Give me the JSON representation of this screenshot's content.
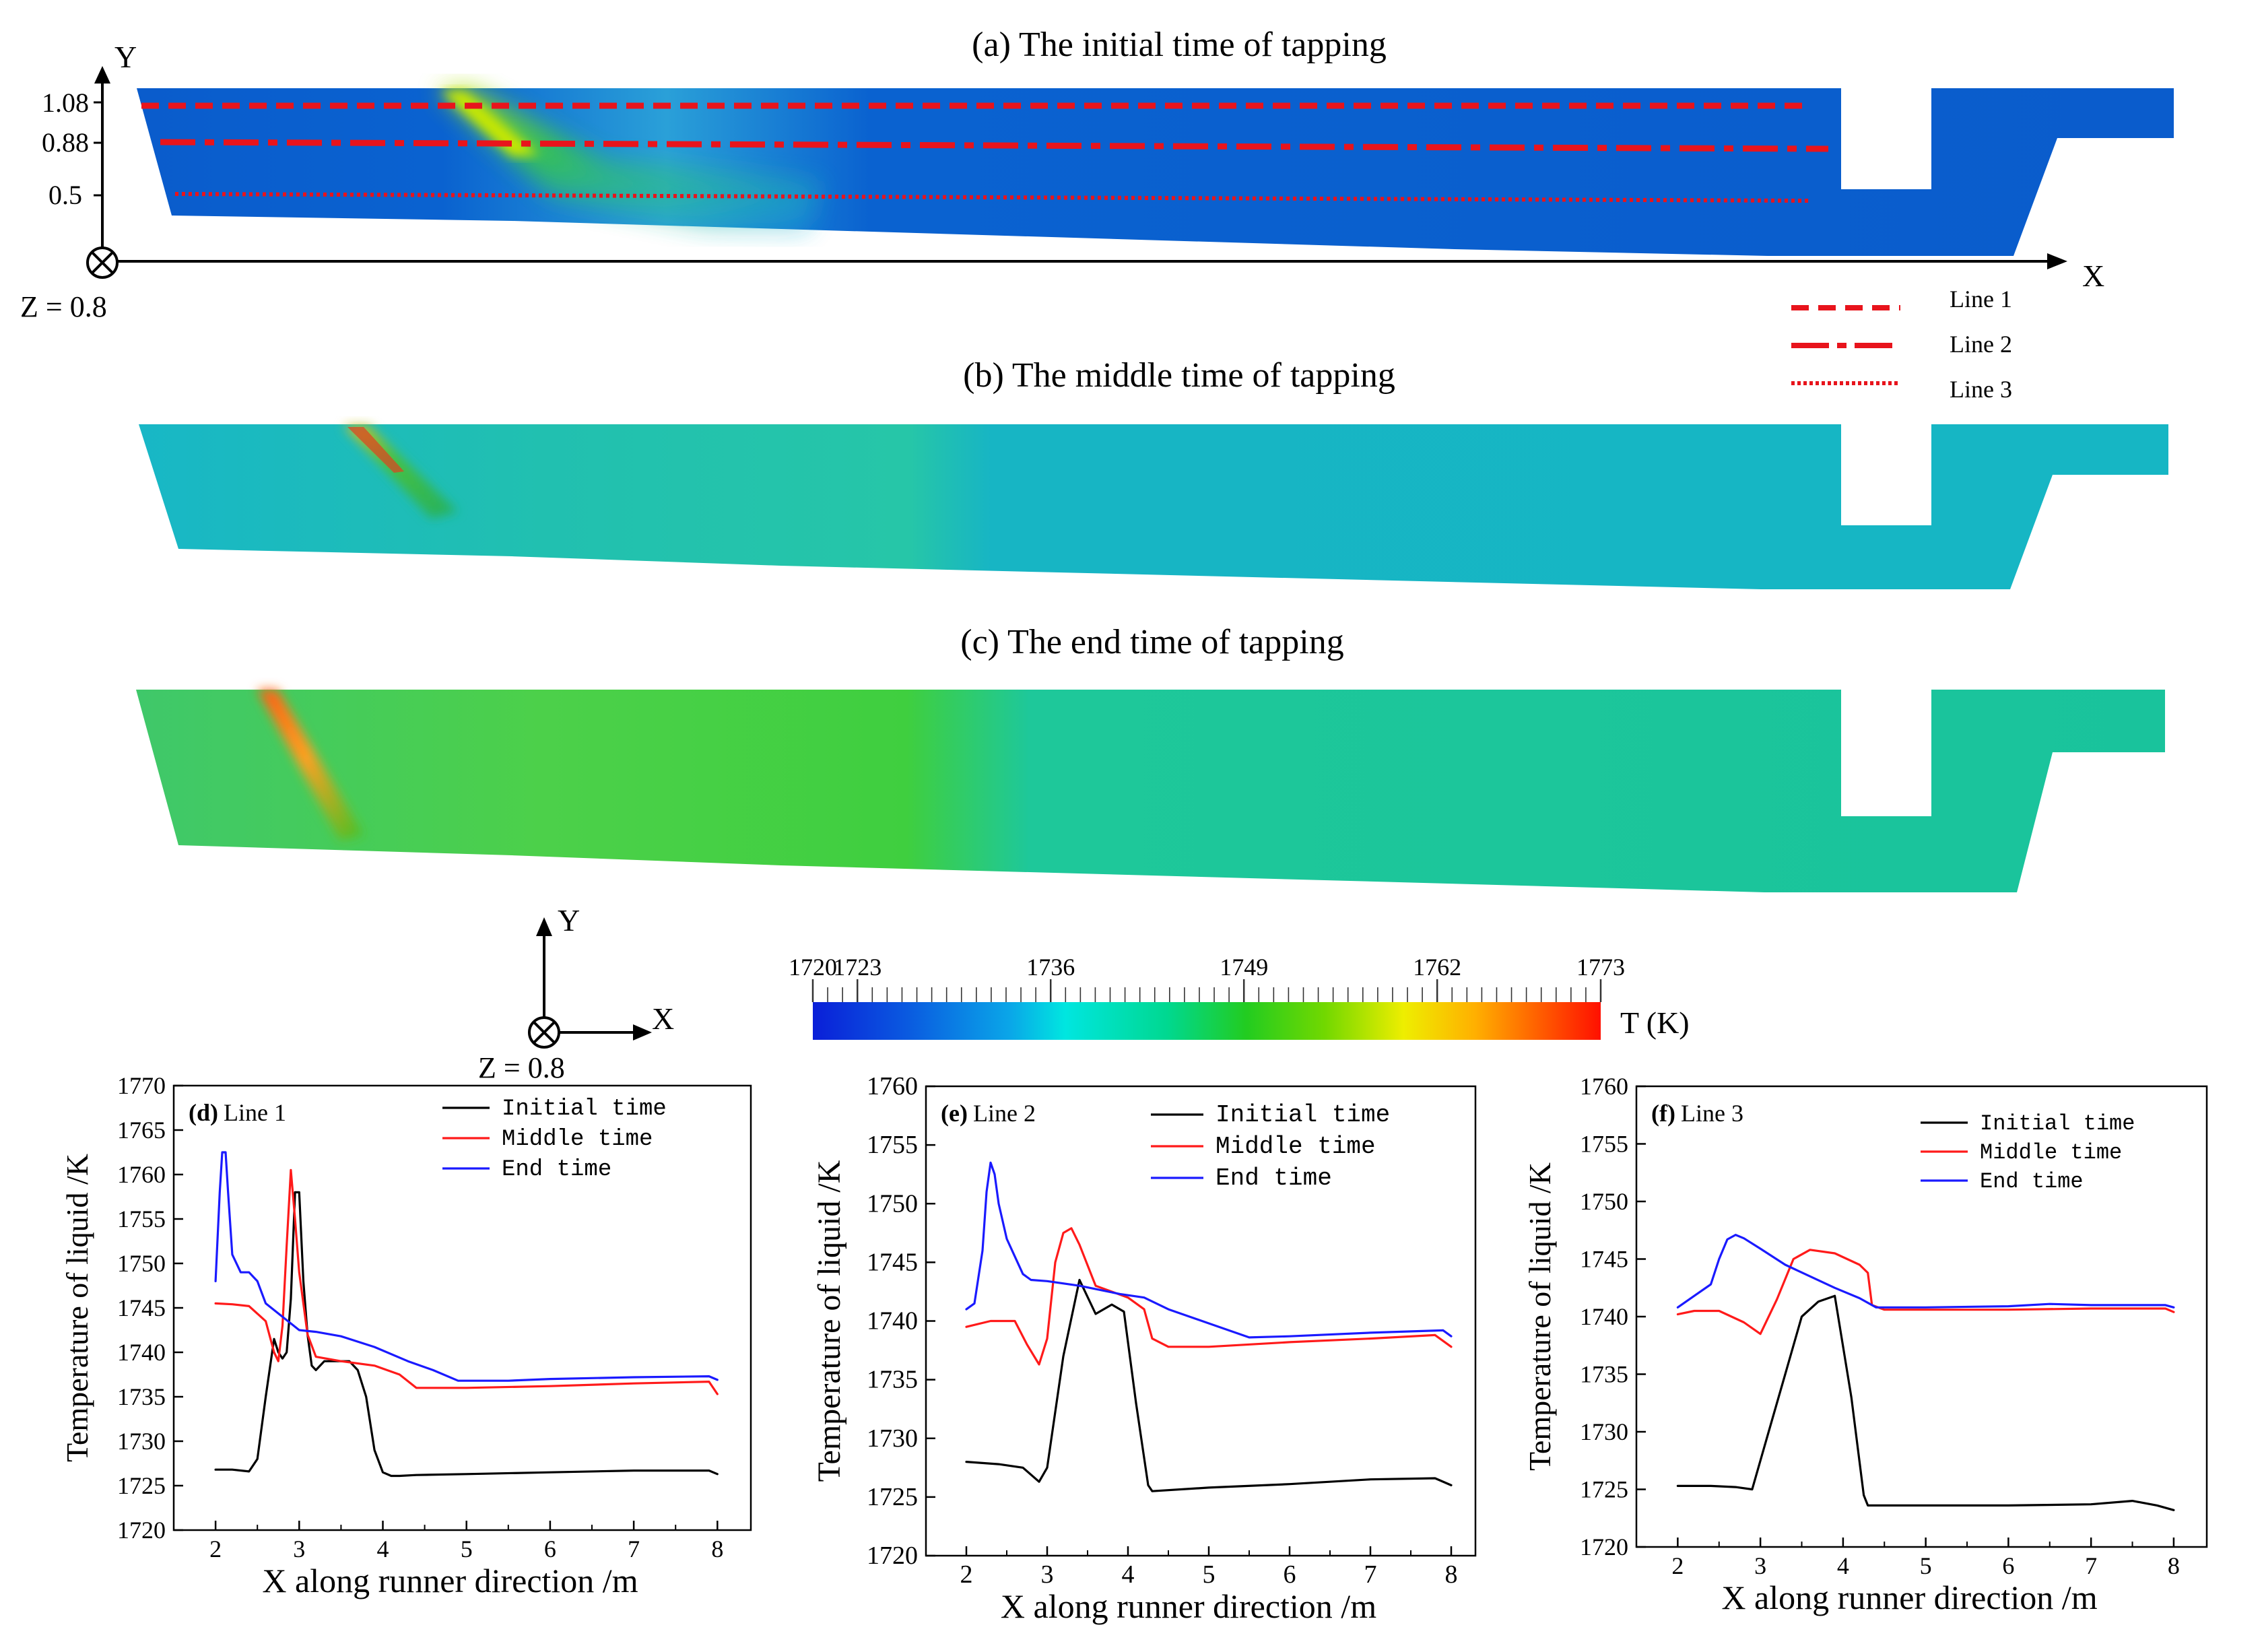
{
  "figure": {
    "panel_titles": {
      "a": "(a) The initial time of tapping",
      "b": "(b) The middle time of tapping",
      "c": "(c) The end time of tapping"
    },
    "axis_top": {
      "y_letter": "Y",
      "x_letter": "X",
      "y_ticks": [
        "1.08",
        "0.88",
        "0.5"
      ],
      "z_label": "Z = 0.8"
    },
    "axis_bottom": {
      "y_letter": "Y",
      "x_letter": "X",
      "z_label": "Z = 0.8"
    },
    "line_legend": [
      "Line 1",
      "Line 2",
      "Line 3"
    ],
    "colorbar": {
      "unit_label": "T (K)",
      "min": 1720,
      "max": 1773,
      "tick_labels": [
        "1720",
        "1723",
        "1736",
        "1749",
        "1762",
        "1773"
      ],
      "tick_values": [
        1720,
        1723,
        1736,
        1749,
        1762,
        1773
      ]
    },
    "colors": {
      "initial": "#000000",
      "middle": "#ff1a1a",
      "end": "#1a1aff",
      "marker_lines": "#e8141c",
      "field_deep_blue": "#0a5ccc"
    }
  },
  "chart_data": [
    {
      "id": "d",
      "type": "line",
      "panel_label": "(d) Line 1",
      "panel_letter": "(d)",
      "panel_name": "Line 1",
      "xlabel": "X along runner direction /m",
      "ylabel": "Temperature of liquid /K",
      "xlim": [
        1.5,
        8.4
      ],
      "ylim": [
        1720,
        1770
      ],
      "xticks": [
        "2",
        "3",
        "4",
        "5",
        "6",
        "7",
        "8"
      ],
      "yticks": [
        "1720",
        "1725",
        "1730",
        "1735",
        "1740",
        "1745",
        "1750",
        "1755",
        "1760",
        "1765",
        "1770"
      ],
      "legend": [
        "Initial time",
        "Middle time",
        "End time"
      ],
      "series": [
        {
          "name": "Initial time",
          "color": "#000000",
          "x": [
            2,
            2.2,
            2.4,
            2.5,
            2.6,
            2.7,
            2.75,
            2.8,
            2.85,
            2.9,
            2.95,
            3.0,
            3.05,
            3.1,
            3.15,
            3.2,
            3.3,
            3.4,
            3.5,
            3.6,
            3.7,
            3.8,
            3.9,
            4.0,
            4.1,
            4.2,
            4.4,
            5,
            6,
            7,
            7.5,
            7.9,
            8
          ],
          "y": [
            1726.8,
            1726.8,
            1726.6,
            1728,
            1735,
            1741.5,
            1740,
            1739.3,
            1740,
            1746,
            1758,
            1758,
            1748,
            1742,
            1738.5,
            1738,
            1739,
            1739,
            1739,
            1739,
            1738,
            1735,
            1729,
            1726.5,
            1726.1,
            1726.1,
            1726.2,
            1726.3,
            1726.5,
            1726.7,
            1726.7,
            1726.7,
            1726.3
          ]
        },
        {
          "name": "Middle time",
          "color": "#ff1a1a",
          "x": [
            2,
            2.2,
            2.4,
            2.6,
            2.7,
            2.75,
            2.8,
            2.85,
            2.9,
            2.95,
            3.0,
            3.1,
            3.2,
            3.5,
            3.9,
            4.2,
            4.4,
            5,
            6,
            7,
            7.9,
            8
          ],
          "y": [
            1745.5,
            1745.4,
            1745.2,
            1743.5,
            1740,
            1739,
            1743,
            1752,
            1760.5,
            1755,
            1749,
            1742,
            1739.5,
            1739,
            1738.5,
            1737.5,
            1736,
            1736,
            1736.2,
            1736.5,
            1736.7,
            1735.3
          ]
        },
        {
          "name": "End time",
          "color": "#1a1aff",
          "x": [
            2,
            2.05,
            2.08,
            2.12,
            2.15,
            2.2,
            2.3,
            2.4,
            2.5,
            2.6,
            2.8,
            3.0,
            3.2,
            3.5,
            3.9,
            4.3,
            4.6,
            4.9,
            5.5,
            6,
            7,
            7.9,
            8
          ],
          "y": [
            1748,
            1758,
            1762.5,
            1762.5,
            1758,
            1751,
            1749,
            1749,
            1748,
            1745.5,
            1744,
            1742.5,
            1742.3,
            1741.8,
            1740.6,
            1739,
            1738,
            1736.8,
            1736.8,
            1737,
            1737.2,
            1737.3,
            1736.9
          ]
        }
      ]
    },
    {
      "id": "e",
      "type": "line",
      "panel_label": "(e) Line 2",
      "panel_letter": "(e)",
      "panel_name": "Line 2",
      "xlabel": "X along runner direction /m",
      "ylabel": "Temperature of liquid /K",
      "xlim": [
        1.5,
        8.3
      ],
      "ylim": [
        1720,
        1760
      ],
      "xticks": [
        "2",
        "3",
        "4",
        "5",
        "6",
        "7",
        "8"
      ],
      "yticks": [
        "1720",
        "1725",
        "1730",
        "1735",
        "1740",
        "1745",
        "1750",
        "1755",
        "1760"
      ],
      "legend": [
        "Initial time",
        "Middle time",
        "End time"
      ],
      "series": [
        {
          "name": "Initial time",
          "color": "#000000",
          "x": [
            2,
            2.4,
            2.7,
            2.9,
            3.0,
            3.2,
            3.4,
            3.6,
            3.8,
            3.95,
            4.1,
            4.25,
            4.3,
            5,
            6,
            7,
            7.8,
            8
          ],
          "y": [
            1728,
            1727.8,
            1727.5,
            1726.3,
            1727.5,
            1737,
            1743.5,
            1740.6,
            1741.4,
            1740.8,
            1733,
            1726,
            1725.5,
            1725.8,
            1726.1,
            1726.5,
            1726.6,
            1726
          ]
        },
        {
          "name": "Middle time",
          "color": "#ff1a1a",
          "x": [
            2,
            2.3,
            2.6,
            2.75,
            2.9,
            3.0,
            3.1,
            3.2,
            3.3,
            3.4,
            3.6,
            4.0,
            4.2,
            4.3,
            4.5,
            5,
            6,
            7,
            7.8,
            8
          ],
          "y": [
            1739.5,
            1740,
            1740,
            1738,
            1736.3,
            1738.5,
            1745,
            1747.5,
            1747.9,
            1746.5,
            1743,
            1742,
            1741,
            1738.5,
            1737.8,
            1737.8,
            1738.2,
            1738.5,
            1738.8,
            1737.8
          ]
        },
        {
          "name": "End time",
          "color": "#1a1aff",
          "x": [
            2,
            2.1,
            2.2,
            2.25,
            2.3,
            2.35,
            2.4,
            2.5,
            2.6,
            2.7,
            2.8,
            3.0,
            3.4,
            3.9,
            4.2,
            4.5,
            5,
            5.5,
            6,
            7,
            7.9,
            8
          ],
          "y": [
            1741,
            1741.5,
            1746,
            1751,
            1753.5,
            1752.5,
            1750,
            1747,
            1745.5,
            1744,
            1743.5,
            1743.4,
            1743,
            1742.3,
            1742,
            1741,
            1739.8,
            1738.6,
            1738.7,
            1739,
            1739.2,
            1738.7
          ]
        }
      ]
    },
    {
      "id": "f",
      "type": "line",
      "panel_label": "(f) Line 3",
      "panel_letter": "(f)",
      "panel_name": "Line 3",
      "xlabel": "X along runner direction /m",
      "ylabel": "Temperature of liquid /K",
      "xlim": [
        1.5,
        8.4
      ],
      "ylim": [
        1720,
        1760
      ],
      "xticks": [
        "2",
        "3",
        "4",
        "5",
        "6",
        "7",
        "8"
      ],
      "yticks": [
        "1720",
        "1725",
        "1730",
        "1735",
        "1740",
        "1745",
        "1750",
        "1755",
        "1760"
      ],
      "legend": [
        "Initial time",
        "Middle time",
        "End time"
      ],
      "series": [
        {
          "name": "Initial time",
          "color": "#000000",
          "x": [
            2,
            2.4,
            2.7,
            2.9,
            3.1,
            3.3,
            3.5,
            3.7,
            3.9,
            4.1,
            4.25,
            4.3,
            5,
            6,
            7,
            7.5,
            7.8,
            8
          ],
          "y": [
            1725.3,
            1725.3,
            1725.2,
            1725,
            1730,
            1735,
            1740,
            1741.3,
            1741.8,
            1733,
            1724.5,
            1723.6,
            1723.6,
            1723.6,
            1723.7,
            1724,
            1723.6,
            1723.2
          ]
        },
        {
          "name": "Middle time",
          "color": "#ff1a1a",
          "x": [
            2,
            2.2,
            2.5,
            2.8,
            3.0,
            3.2,
            3.4,
            3.6,
            3.9,
            4.2,
            4.3,
            4.35,
            4.5,
            5,
            6,
            7,
            7.9,
            8
          ],
          "y": [
            1740.2,
            1740.5,
            1740.5,
            1739.5,
            1738.5,
            1741.5,
            1745,
            1745.8,
            1745.5,
            1744.5,
            1743.8,
            1741,
            1740.6,
            1740.6,
            1740.6,
            1740.7,
            1740.7,
            1740.4
          ]
        },
        {
          "name": "End time",
          "color": "#1a1aff",
          "x": [
            2,
            2.2,
            2.4,
            2.5,
            2.6,
            2.7,
            2.8,
            3.0,
            3.3,
            3.6,
            3.9,
            4.2,
            4.4,
            5,
            6,
            6.5,
            7,
            7.9,
            8
          ],
          "y": [
            1740.8,
            1741.8,
            1742.8,
            1745,
            1746.7,
            1747.1,
            1746.8,
            1745.9,
            1744.5,
            1743.5,
            1742.5,
            1741.6,
            1740.8,
            1740.8,
            1740.9,
            1741.1,
            1741,
            1741,
            1740.8
          ]
        }
      ]
    }
  ]
}
